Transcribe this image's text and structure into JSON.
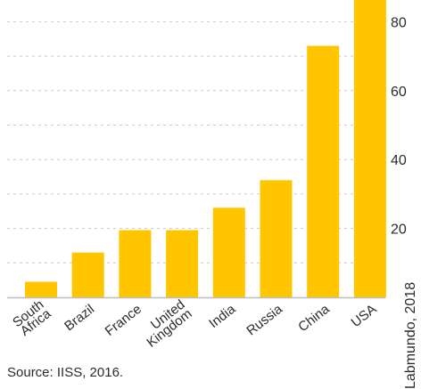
{
  "chart_data": {
    "type": "bar",
    "categories": [
      "South Africa",
      "Brazil",
      "France",
      "United Kingdom",
      "India",
      "Russia",
      "China",
      "USA"
    ],
    "category_lines": [
      [
        "South",
        "Africa"
      ],
      [
        "Brazil"
      ],
      [
        "France"
      ],
      [
        "United",
        "Kingdom"
      ],
      [
        "India"
      ],
      [
        "Russia"
      ],
      [
        "China"
      ],
      [
        "USA"
      ]
    ],
    "values": [
      4.5,
      13,
      19.5,
      19.5,
      26,
      34,
      73,
      87
    ],
    "y_ticks": [
      20,
      40,
      60,
      80
    ],
    "ylim": [
      0,
      86
    ],
    "grid": true,
    "bar_color": "#ffc600",
    "grid_color": "#c9c9c9",
    "axis_color": "#bdbdbd"
  },
  "source_text": "Source: IISS, 2016.",
  "credit_text": "Labmundo, 2018"
}
